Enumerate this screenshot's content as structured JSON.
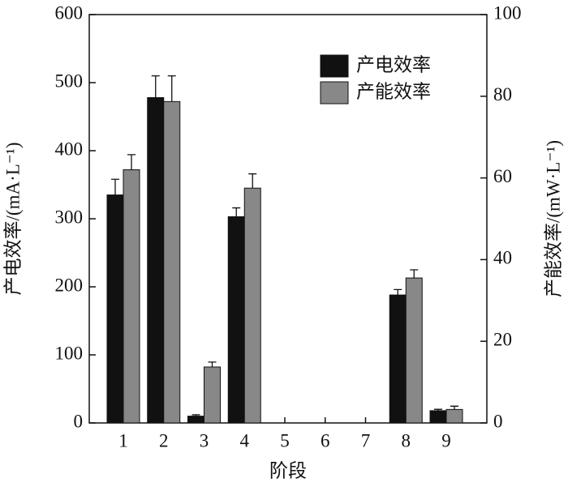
{
  "chart_data": {
    "type": "bar",
    "x_label": "阶段",
    "y_label": "产电效率/(mA·L⁻¹)",
    "y2_label": "产能效率/(mW·L⁻¹)",
    "categories": [
      "1",
      "2",
      "3",
      "4",
      "5",
      "6",
      "7",
      "8",
      "9"
    ],
    "series": [
      {
        "name": "产电效率",
        "color": "#111111",
        "axis": "y",
        "values": [
          335,
          478,
          10,
          303,
          0,
          0,
          0,
          188,
          18
        ],
        "errors": [
          23,
          32,
          2,
          13,
          0,
          0,
          0,
          8,
          2
        ]
      },
      {
        "name": "产能效率",
        "color": "#888888",
        "axis": "y2",
        "values": [
          62,
          78.7,
          13.7,
          57.5,
          0,
          0,
          0,
          35.5,
          3.3
        ],
        "errors": [
          3.7,
          6.3,
          1.2,
          3.5,
          0,
          0,
          0,
          2,
          0.8
        ]
      }
    ],
    "ylim": [
      0,
      600
    ],
    "yticks": [
      0,
      100,
      200,
      300,
      400,
      500,
      600
    ],
    "y2lim": [
      0,
      100
    ],
    "y2ticks": [
      0,
      20,
      40,
      60,
      80,
      100
    ],
    "legend": "upper right",
    "grid": false
  }
}
